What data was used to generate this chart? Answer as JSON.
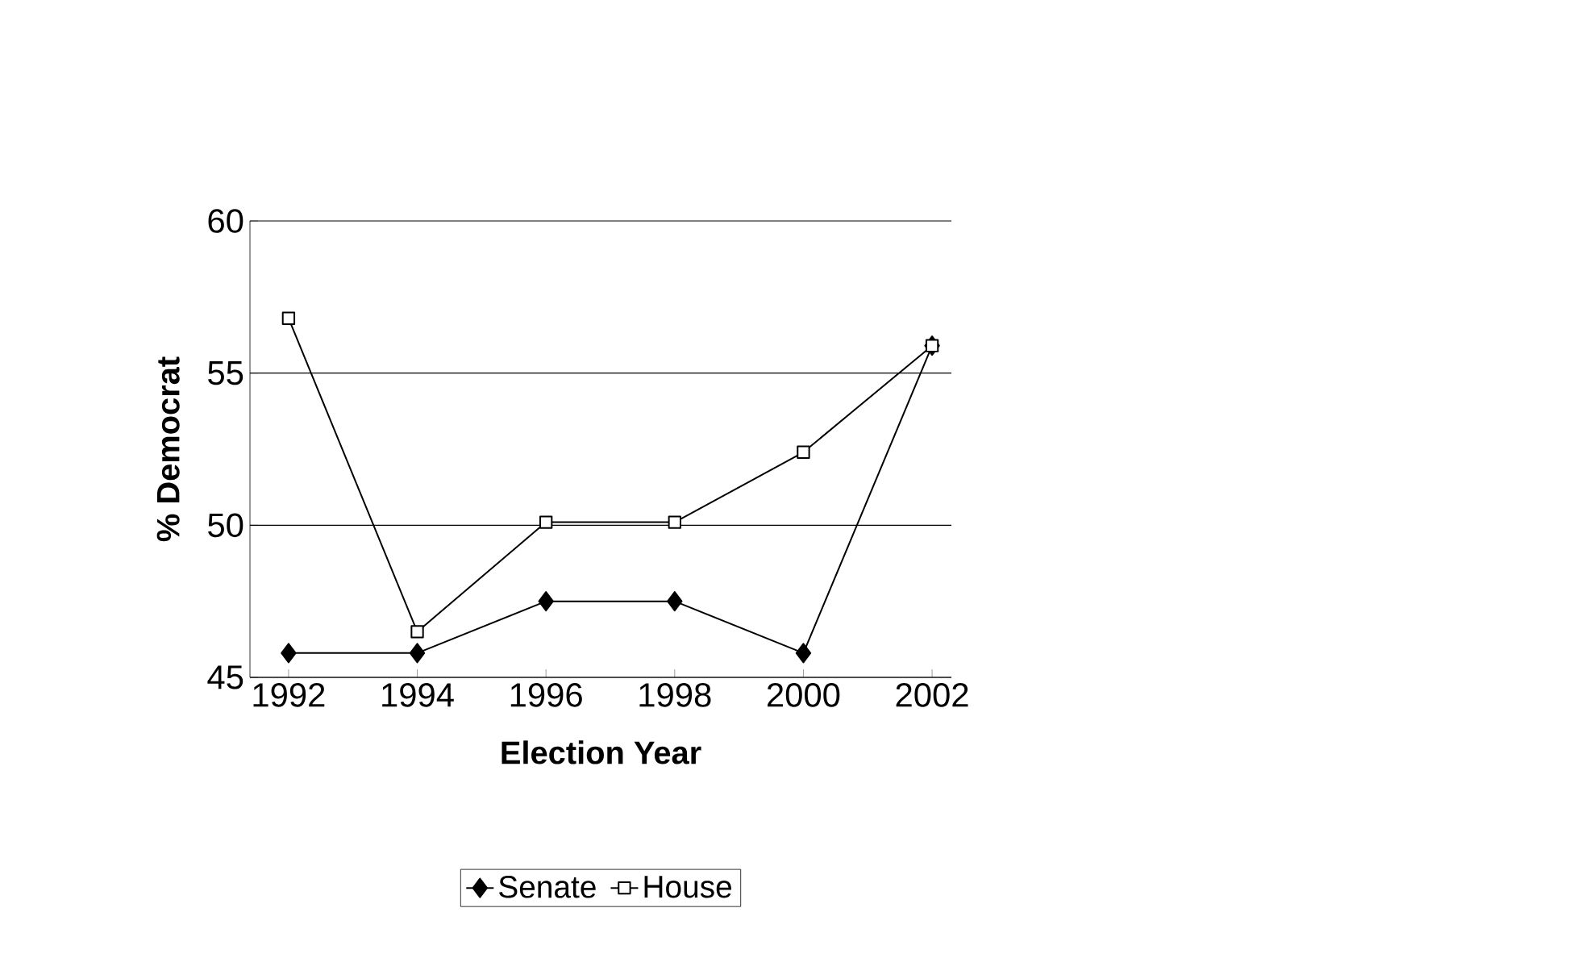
{
  "chart_data": {
    "type": "line",
    "xlabel": "Election Year",
    "ylabel": "% Democrat",
    "categories": [
      "1992",
      "1994",
      "1996",
      "1998",
      "2000",
      "2002"
    ],
    "series": [
      {
        "name": "Senate",
        "color": "#000000",
        "marker": "diamond",
        "values": [
          45.8,
          45.8,
          47.5,
          47.5,
          45.8,
          55.9
        ]
      },
      {
        "name": "House",
        "color": "#000000",
        "marker": "square",
        "values": [
          56.8,
          46.5,
          50.1,
          50.1,
          52.4,
          55.9
        ]
      }
    ],
    "ylim": [
      45,
      60
    ],
    "yticks": [
      45,
      50,
      55,
      60
    ],
    "grid": "y",
    "legend": "bottom",
    "line_style": "solid"
  }
}
